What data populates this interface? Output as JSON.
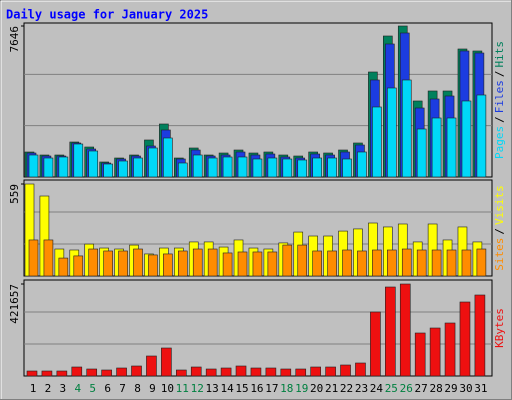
{
  "chart_data": [
    {
      "type": "bar",
      "title": "Daily usage for January 2025",
      "legend_separator": "/",
      "ylim": [
        0,
        7646
      ],
      "yticks": [
        7646
      ],
      "series": [
        {
          "name": "Hits",
          "color": "#00805c",
          "values": [
            1266,
            1114,
            1114,
            1772,
            1519,
            760,
            962,
            1114,
            1874,
            2684,
            962,
            1469,
            1114,
            1215,
            1367,
            1215,
            1266,
            1114,
            1063,
            1266,
            1215,
            1367,
            1722,
            5317,
            7140,
            7646,
            3849,
            4355,
            4355,
            6482,
            6381
          ]
        },
        {
          "name": "Files",
          "color": "#1c3ce0",
          "values": [
            1215,
            1063,
            1063,
            1722,
            1418,
            709,
            912,
            1063,
            1570,
            2380,
            912,
            1367,
            1063,
            1114,
            1266,
            1114,
            1165,
            1013,
            962,
            1165,
            1114,
            1266,
            1620,
            4912,
            6735,
            7292,
            3494,
            3950,
            4102,
            6381,
            6279
          ]
        },
        {
          "name": "Pages",
          "color": "#00d8f8",
          "values": [
            1114,
            962,
            1013,
            1671,
            1317,
            658,
            810,
            962,
            1469,
            1975,
            709,
            1114,
            962,
            1013,
            1013,
            912,
            962,
            912,
            861,
            962,
            962,
            912,
            1266,
            3545,
            4507,
            4912,
            2431,
            2988,
            2988,
            3849,
            4152
          ]
        }
      ]
    },
    {
      "type": "bar",
      "legend_separator": "/",
      "ylim": [
        0,
        559
      ],
      "yticks": [
        559
      ],
      "series": [
        {
          "name": "Visits",
          "color": "#ffff00",
          "values": [
            559,
            486,
            164,
            158,
            194,
            170,
            164,
            188,
            134,
            170,
            170,
            207,
            207,
            176,
            219,
            170,
            164,
            201,
            267,
            243,
            243,
            273,
            286,
            322,
            298,
            316,
            207,
            316,
            219,
            298,
            207
          ]
        },
        {
          "name": "Sites",
          "color": "#ff8c00",
          "values": [
            219,
            219,
            109,
            122,
            164,
            152,
            152,
            164,
            128,
            134,
            152,
            164,
            164,
            140,
            146,
            146,
            146,
            188,
            188,
            152,
            152,
            158,
            152,
            158,
            158,
            164,
            158,
            158,
            158,
            158,
            164
          ]
        }
      ]
    },
    {
      "type": "bar",
      "ylim": [
        0,
        421657
      ],
      "yticks": [
        421657
      ],
      "categories": [
        "1",
        "2",
        "3",
        "4",
        "5",
        "6",
        "7",
        "8",
        "9",
        "10",
        "11",
        "12",
        "13",
        "14",
        "15",
        "16",
        "17",
        "18",
        "19",
        "20",
        "21",
        "22",
        "23",
        "24",
        "25",
        "26",
        "27",
        "28",
        "29",
        "30",
        "31"
      ],
      "category_colors": [
        "#000000",
        "#000000",
        "#000000",
        "#008040",
        "#008040",
        "#000000",
        "#000000",
        "#000000",
        "#000000",
        "#000000",
        "#008040",
        "#008040",
        "#000000",
        "#000000",
        "#000000",
        "#000000",
        "#000000",
        "#008040",
        "#008040",
        "#000000",
        "#000000",
        "#000000",
        "#000000",
        "#000000",
        "#008040",
        "#008040",
        "#000000",
        "#000000",
        "#000000",
        "#000000",
        "#000000"
      ],
      "series": [
        {
          "name": "KBytes",
          "color": "#ee1010",
          "values": [
            22915,
            22915,
            22915,
            41247,
            32081,
            27498,
            36664,
            45830,
            91660,
            128324,
            27498,
            41247,
            32081,
            36664,
            45830,
            36664,
            36664,
            32081,
            32081,
            41247,
            41247,
            50413,
            59579,
            293312,
            407887,
            421657,
            197069,
            219984,
            242899,
            339142,
            371223
          ]
        }
      ]
    }
  ]
}
